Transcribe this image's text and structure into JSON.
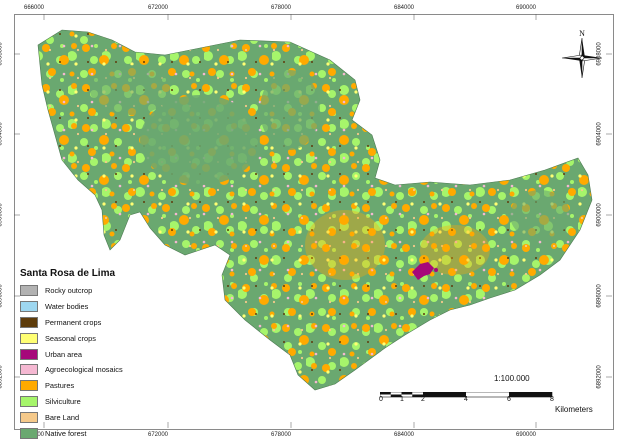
{
  "map": {
    "title": "Santa Rosa de Lima",
    "scale_text": "1:100.000",
    "scale_unit": "Kilometers",
    "scale_numbers": [
      "0",
      "1",
      "2",
      "4",
      "6",
      "8"
    ],
    "north_label": "N",
    "x_coords": [
      "666000",
      "672000",
      "678000",
      "684000",
      "690000"
    ],
    "y_coords": [
      "6908000",
      "6904000",
      "6900000",
      "6896000",
      "6892000"
    ]
  },
  "legend": [
    {
      "label": "Rocky outcrop",
      "color": "#b2b2b2"
    },
    {
      "label": "Water bodies",
      "color": "#9ed7f0"
    },
    {
      "label": "Permanent crops",
      "color": "#5e3c0b"
    },
    {
      "label": "Seasonal crops",
      "color": "#ffff73"
    },
    {
      "label": "Urban area",
      "color": "#a6087a"
    },
    {
      "label": "Agroecological mosaics",
      "color": "#f5b8d2"
    },
    {
      "label": "Pastures",
      "color": "#ffaa00"
    },
    {
      "label": "Silviculture",
      "color": "#a6f56b"
    },
    {
      "label": "Bare Land",
      "color": "#f5c98a"
    },
    {
      "label": "Native forest",
      "color": "#6aa870"
    }
  ]
}
